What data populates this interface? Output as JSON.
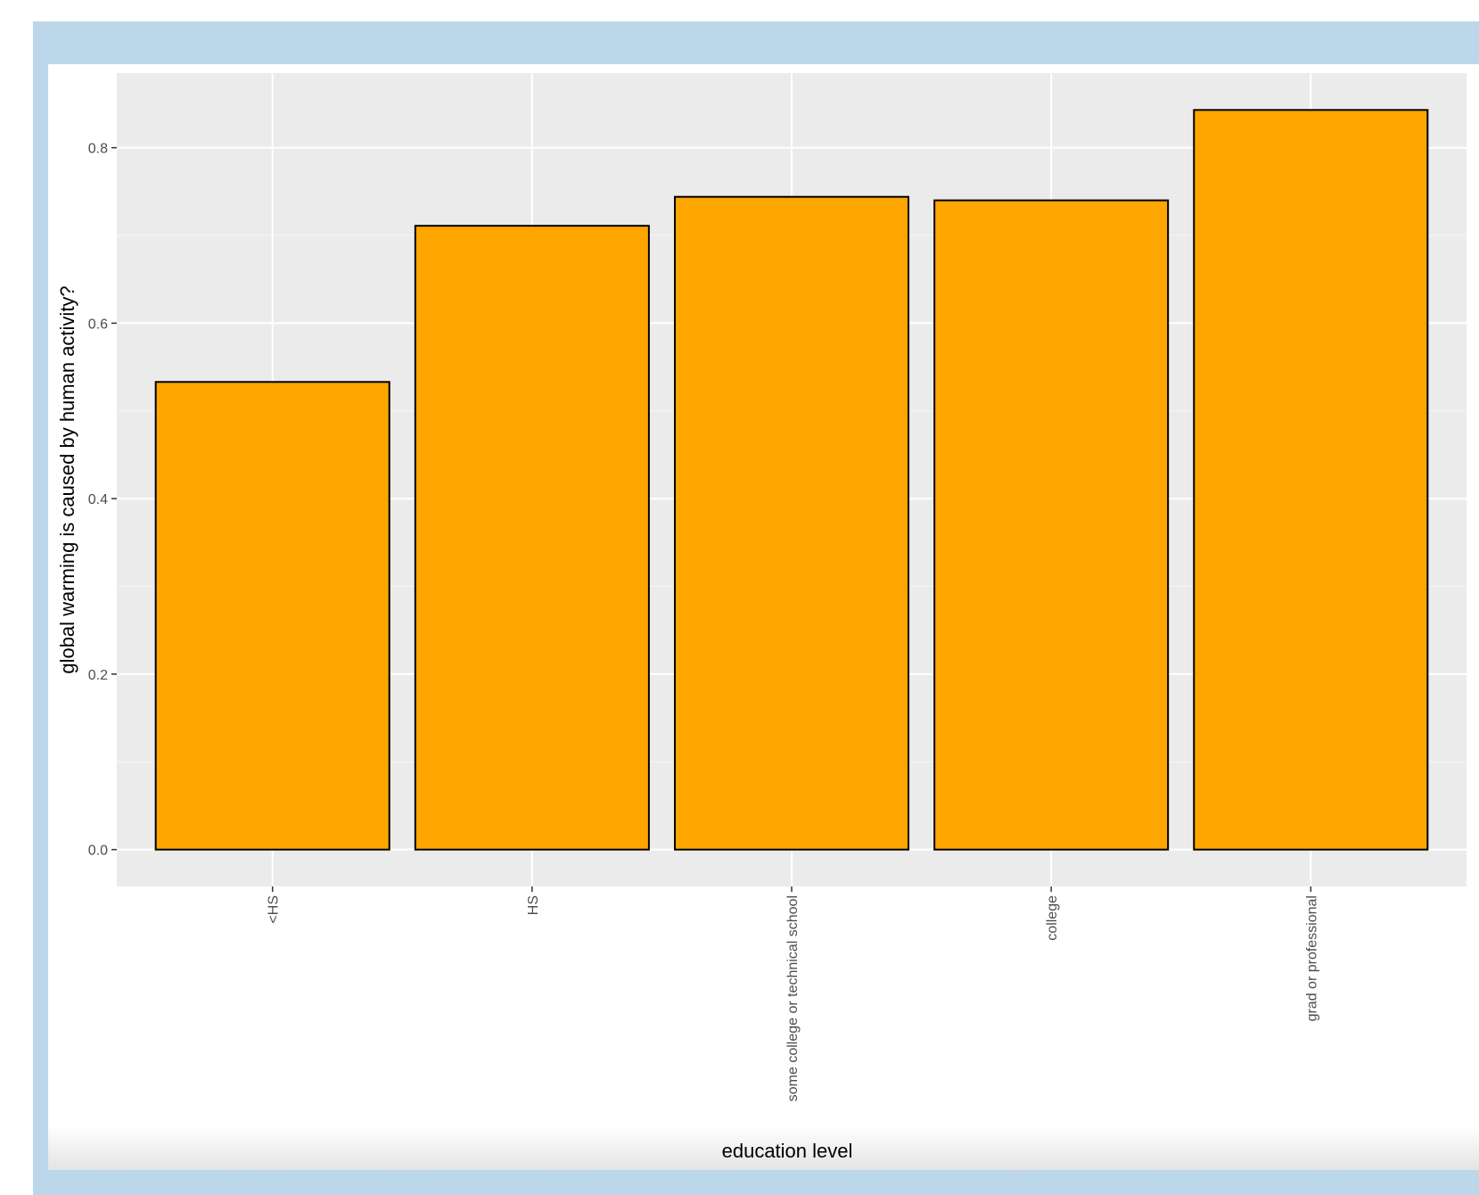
{
  "colors": {
    "frame": "#bcd6ea",
    "panel_background": "#ebebeb",
    "grid_major": "#ffffff",
    "bar_fill": "#ffa500",
    "bar_outline": "#000000",
    "tick_text": "#4d4d4d"
  },
  "chart_data": {
    "type": "bar",
    "categories": [
      "<HS",
      "HS",
      "some college or technical school",
      "college",
      "grad or professional"
    ],
    "values": [
      0.533,
      0.711,
      0.744,
      0.74,
      0.843
    ],
    "xlabel": "education level",
    "ylabel": "global warming is caused by human activity?",
    "ylim": [
      -0.042,
      0.885
    ],
    "yticks": [
      "0.0",
      "0.2",
      "0.4",
      "0.6",
      "0.8"
    ],
    "x_tick_label_rotation": "vertical",
    "grid": true,
    "legend": "none"
  }
}
